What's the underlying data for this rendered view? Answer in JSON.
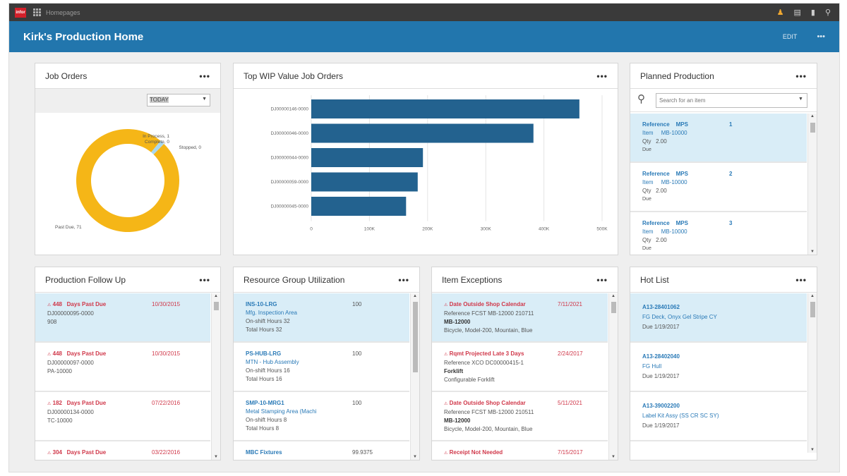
{
  "topbar": {
    "logo": "infor",
    "breadcrumb": "Homepages",
    "icons": [
      "user-icon",
      "chat-icon",
      "bookmark-icon",
      "search-icon"
    ]
  },
  "header": {
    "title": "Kirk's Production Home",
    "edit_label": "EDIT",
    "more": "•••"
  },
  "colors": {
    "header": "#2276ad",
    "donut_main": "#f5b617",
    "donut_accent": "#a8d8ef",
    "bar": "#23628f",
    "alert": "#d0384a",
    "link": "#2a7ab7",
    "selected": "#d9edf7"
  },
  "job_orders": {
    "title": "Job Orders",
    "filter": "TODAY",
    "chart_data": {
      "type": "pie",
      "slices": [
        {
          "label": "Past Due",
          "value": 71
        },
        {
          "label": "In Process",
          "value": 1
        },
        {
          "label": "Complete",
          "value": 0
        },
        {
          "label": "Stopped",
          "value": 0
        }
      ]
    },
    "labels": {
      "past_due": "Past Due, 71",
      "in_process": "In Process, 1",
      "complete": "Complete, 0",
      "stopped": "Stopped, 0"
    }
  },
  "wip": {
    "title": "Top WIP Value Job Orders",
    "chart_data": {
      "type": "bar",
      "orientation": "horizontal",
      "categories": [
        "DJ00000146-0000",
        "DJ00000046-0000",
        "DJ00000044-0000",
        "DJ00000059-0000",
        "DJ00000045-0000"
      ],
      "values": [
        461000,
        382000,
        192000,
        183000,
        163000
      ],
      "xlim": [
        0,
        500000
      ],
      "xticks": [
        "0",
        "100K",
        "200K",
        "300K",
        "400K",
        "500K"
      ],
      "grid": true
    }
  },
  "planned": {
    "title": "Planned Production",
    "search_placeholder": "Search for an item",
    "items": [
      {
        "ref_label": "Reference",
        "ref": "MPS",
        "num": "1",
        "item_label": "Item",
        "item": "MB-10000",
        "qty_label": "Qty",
        "qty": "2.00",
        "due_label": "Due"
      },
      {
        "ref_label": "Reference",
        "ref": "MPS",
        "num": "2",
        "item_label": "Item",
        "item": "MB-10000",
        "qty_label": "Qty",
        "qty": "2.00",
        "due_label": "Due"
      },
      {
        "ref_label": "Reference",
        "ref": "MPS",
        "num": "3",
        "item_label": "Item",
        "item": "MB-10000",
        "qty_label": "Qty",
        "qty": "2.00",
        "due_label": "Due"
      }
    ]
  },
  "followup": {
    "title": "Production Follow Up",
    "items": [
      {
        "days": "448",
        "status": "Days Past Due",
        "date": "10/30/2015",
        "job": "DJ00000095-0000",
        "item": "908"
      },
      {
        "days": "448",
        "status": "Days Past Due",
        "date": "10/30/2015",
        "job": "DJ00000097-0000",
        "item": "PA-10000"
      },
      {
        "days": "182",
        "status": "Days Past Due",
        "date": "07/22/2016",
        "job": "DJ00000134-0000",
        "item": "TC-10000"
      },
      {
        "days": "304",
        "status": "Days Past Due",
        "date": "03/22/2016",
        "job": "",
        "item": ""
      }
    ]
  },
  "resource": {
    "title": "Resource Group Utilization",
    "items": [
      {
        "code": "INS-10-LRG",
        "value": "100",
        "desc": "Mfg. Inspection Area",
        "on_shift": "On-shift Hours  32",
        "total": "Total Hours  32"
      },
      {
        "code": "PS-HUB-LRG",
        "value": "100",
        "desc": "MTN - Hub Assembly",
        "on_shift": "On-shift Hours  16",
        "total": "Total Hours  16"
      },
      {
        "code": "SMP-10-MRG1",
        "value": "100",
        "desc": "Metal Stamping Area (Machi",
        "on_shift": "On-shift Hours  8",
        "total": "Total Hours  8"
      },
      {
        "code": "MBC Fixtures",
        "value": "99.9375",
        "desc": "",
        "on_shift": "",
        "total": ""
      }
    ]
  },
  "exceptions": {
    "title": "Item Exceptions",
    "items": [
      {
        "type": "Date Outside Shop Calendar",
        "date": "7/11/2021",
        "ref": "Reference     FCST MB-12000 210711",
        "item": "MB-12000",
        "desc": "Bicycle, Model-200, Mountain, Blue"
      },
      {
        "type": "Rqmt Projected Late 3 Days",
        "date": "2/24/2017",
        "ref": "Reference     XCO DC00000415-1",
        "item": "Forklift",
        "desc": "Configurable Forklift"
      },
      {
        "type": "Date Outside Shop Calendar",
        "date": "5/11/2021",
        "ref": "Reference     FCST MB-12000 210511",
        "item": "MB-12000",
        "desc": "Bicycle, Model-200, Mountain, Blue"
      },
      {
        "type": "Receipt Not Needed",
        "date": "7/15/2017",
        "ref": "",
        "item": "",
        "desc": ""
      }
    ]
  },
  "hotlist": {
    "title": "Hot List",
    "items": [
      {
        "code": "A13-28401062",
        "desc": "FG Deck, Onyx Gel Stripe CY",
        "due": "Due   1/19/2017"
      },
      {
        "code": "A13-28402040",
        "desc": "FG Hull",
        "due": "Due   1/19/2017"
      },
      {
        "code": "A13-39002200",
        "desc": "Label Kit Assy (SS CR SC SY)",
        "due": "Due   1/19/2017"
      }
    ]
  }
}
